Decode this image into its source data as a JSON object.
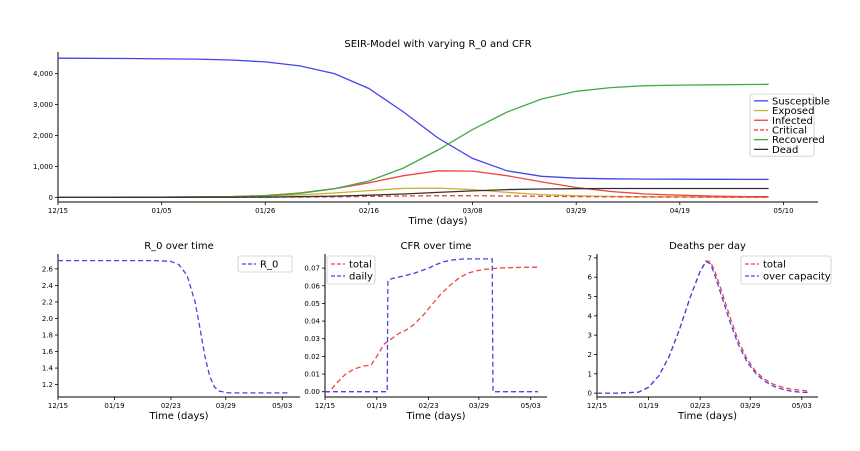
{
  "chart_data": [
    {
      "type": "line",
      "title": "SEIR-Model with varying R_0 and CFR",
      "xlabel": "Time (days)",
      "ylabel": "",
      "xlim": [
        0,
        154
      ],
      "ylim": [
        -150,
        4700
      ],
      "xticks": [
        {
          "x": 0,
          "label": "12/15"
        },
        {
          "x": 21,
          "label": "01/05"
        },
        {
          "x": 42,
          "label": "01/26"
        },
        {
          "x": 63,
          "label": "02/16"
        },
        {
          "x": 84,
          "label": "03/08"
        },
        {
          "x": 105,
          "label": "03/29"
        },
        {
          "x": 126,
          "label": "04/19"
        },
        {
          "x": 147,
          "label": "05/10"
        }
      ],
      "yticks": [
        {
          "y": 0,
          "label": "0"
        },
        {
          "y": 1000,
          "label": "1,000"
        },
        {
          "y": 2000,
          "label": "2,000"
        },
        {
          "y": 3000,
          "label": "3,000"
        },
        {
          "y": 4000,
          "label": "4,000"
        }
      ],
      "legend_position": "right",
      "series": [
        {
          "name": "Susceptible",
          "color": "#4444ee",
          "dash": false,
          "x": [
            0,
            14,
            28,
            35,
            42,
            49,
            56,
            63,
            70,
            77,
            84,
            91,
            98,
            105,
            112,
            119,
            126,
            133,
            140,
            144
          ],
          "y": [
            4500,
            4490,
            4470,
            4440,
            4380,
            4250,
            4000,
            3520,
            2760,
            1920,
            1260,
            860,
            680,
            620,
            600,
            590,
            588,
            585,
            582,
            580
          ]
        },
        {
          "name": "Exposed",
          "color": "#c8b030",
          "dash": false,
          "x": [
            0,
            21,
            35,
            42,
            49,
            56,
            63,
            70,
            77,
            84,
            91,
            98,
            105,
            112,
            119,
            126,
            133,
            140,
            144
          ],
          "y": [
            0,
            5,
            20,
            40,
            80,
            140,
            220,
            290,
            300,
            250,
            160,
            90,
            50,
            30,
            20,
            15,
            10,
            5,
            5
          ]
        },
        {
          "name": "Infected",
          "color": "#ee4444",
          "dash": false,
          "x": [
            0,
            21,
            35,
            42,
            49,
            56,
            63,
            70,
            77,
            84,
            91,
            98,
            105,
            112,
            119,
            126,
            133,
            140,
            144
          ],
          "y": [
            0,
            5,
            25,
            60,
            140,
            280,
            470,
            700,
            860,
            850,
            700,
            500,
            320,
            190,
            110,
            70,
            40,
            25,
            20
          ]
        },
        {
          "name": "Critical",
          "color": "#ee4444",
          "dash": true,
          "x": [
            0,
            42,
            56,
            63,
            70,
            77,
            84,
            91,
            98,
            105,
            112,
            126,
            140,
            144
          ],
          "y": [
            0,
            5,
            15,
            30,
            45,
            55,
            55,
            45,
            35,
            25,
            15,
            8,
            5,
            5
          ]
        },
        {
          "name": "Recovered",
          "color": "#44aa44",
          "dash": false,
          "x": [
            0,
            21,
            35,
            42,
            49,
            56,
            63,
            70,
            77,
            84,
            91,
            98,
            105,
            112,
            119,
            126,
            133,
            140,
            144
          ],
          "y": [
            0,
            5,
            20,
            50,
            130,
            280,
            530,
            950,
            1530,
            2190,
            2760,
            3180,
            3430,
            3550,
            3610,
            3630,
            3640,
            3650,
            3655
          ]
        },
        {
          "name": "Dead",
          "color": "#333333",
          "dash": false,
          "x": [
            0,
            35,
            42,
            49,
            56,
            63,
            70,
            77,
            84,
            91,
            98,
            105,
            112,
            119,
            126,
            133,
            140,
            144
          ],
          "y": [
            0,
            5,
            10,
            20,
            40,
            70,
            110,
            160,
            210,
            250,
            270,
            280,
            285,
            285,
            285,
            285,
            285,
            285
          ]
        }
      ]
    },
    {
      "type": "line",
      "title": "R_0 over time",
      "xlabel": "Time (days)",
      "ylabel": "",
      "xlim": [
        0,
        150
      ],
      "ylim": [
        1.05,
        2.78
      ],
      "xticks": [
        {
          "x": 0,
          "label": "12/15"
        },
        {
          "x": 35,
          "label": "01/19"
        },
        {
          "x": 70,
          "label": "02/23"
        },
        {
          "x": 104,
          "label": "03/29"
        },
        {
          "x": 139,
          "label": "05/03"
        }
      ],
      "yticks": [
        {
          "y": 1.2,
          "label": "1.2"
        },
        {
          "y": 1.4,
          "label": "1.4"
        },
        {
          "y": 1.6,
          "label": "1.6"
        },
        {
          "y": 1.8,
          "label": "1.8"
        },
        {
          "y": 2.0,
          "label": "2.0"
        },
        {
          "y": 2.2,
          "label": "2.2"
        },
        {
          "y": 2.4,
          "label": "2.4"
        },
        {
          "y": 2.6,
          "label": "2.6"
        }
      ],
      "legend_position": "top-right",
      "series": [
        {
          "name": "R_0",
          "color": "#4444ee",
          "dash": true,
          "x": [
            0,
            20,
            40,
            60,
            70,
            75,
            80,
            85,
            88,
            91,
            94,
            97,
            100,
            103,
            106,
            110,
            120,
            140,
            144
          ],
          "y": [
            2.7,
            2.7,
            2.7,
            2.7,
            2.69,
            2.65,
            2.52,
            2.2,
            1.88,
            1.55,
            1.3,
            1.17,
            1.12,
            1.11,
            1.1,
            1.1,
            1.1,
            1.1,
            1.1
          ]
        }
      ]
    },
    {
      "type": "line",
      "title": "CFR over time",
      "xlabel": "Time (days)",
      "ylabel": "",
      "xlim": [
        0,
        150
      ],
      "ylim": [
        -0.003,
        0.078
      ],
      "xticks": [
        {
          "x": 0,
          "label": "12/15"
        },
        {
          "x": 35,
          "label": "01/19"
        },
        {
          "x": 70,
          "label": "02/23"
        },
        {
          "x": 104,
          "label": "03/29"
        },
        {
          "x": 139,
          "label": "05/03"
        }
      ],
      "yticks": [
        {
          "y": 0.0,
          "label": "0.00"
        },
        {
          "y": 0.01,
          "label": "0.01"
        },
        {
          "y": 0.02,
          "label": "0.02"
        },
        {
          "y": 0.03,
          "label": "0.03"
        },
        {
          "y": 0.04,
          "label": "0.04"
        },
        {
          "y": 0.05,
          "label": "0.05"
        },
        {
          "y": 0.06,
          "label": "0.06"
        },
        {
          "y": 0.07,
          "label": "0.07"
        }
      ],
      "legend_position": "top-left",
      "series": [
        {
          "name": "total",
          "color": "#ee4444",
          "dash": true,
          "x": [
            0,
            3,
            8,
            14,
            20,
            26,
            31,
            35,
            40,
            45,
            50,
            55,
            60,
            66,
            72,
            78,
            84,
            90,
            96,
            102,
            108,
            114,
            120,
            126,
            132,
            138,
            144
          ],
          "y": [
            0,
            0,
            0.005,
            0.01,
            0.013,
            0.0145,
            0.015,
            0.02,
            0.027,
            0.03,
            0.033,
            0.035,
            0.038,
            0.043,
            0.049,
            0.055,
            0.06,
            0.064,
            0.067,
            0.0685,
            0.0693,
            0.0698,
            0.0701,
            0.0703,
            0.0704,
            0.0705,
            0.0705
          ]
        },
        {
          "name": "daily",
          "color": "#4444ee",
          "dash": true,
          "x": [
            0,
            42,
            42.5,
            45,
            50,
            55,
            60,
            65,
            70,
            75,
            80,
            85,
            90,
            95,
            100,
            108,
            113,
            113.5,
            144
          ],
          "y": [
            0,
            0,
            0.063,
            0.064,
            0.065,
            0.066,
            0.067,
            0.0685,
            0.07,
            0.072,
            0.0735,
            0.0745,
            0.075,
            0.0752,
            0.0752,
            0.0752,
            0.0752,
            0,
            0
          ]
        }
      ]
    },
    {
      "type": "line",
      "title": "Deaths per day",
      "xlabel": "Time (days)",
      "ylabel": "",
      "xlim": [
        0,
        150
      ],
      "ylim": [
        -0.2,
        7.2
      ],
      "xticks": [
        {
          "x": 0,
          "label": "12/15"
        },
        {
          "x": 35,
          "label": "01/19"
        },
        {
          "x": 70,
          "label": "02/23"
        },
        {
          "x": 104,
          "label": "03/29"
        },
        {
          "x": 139,
          "label": "05/03"
        }
      ],
      "yticks": [
        {
          "y": 0,
          "label": "0"
        },
        {
          "y": 1,
          "label": "1"
        },
        {
          "y": 2,
          "label": "2"
        },
        {
          "y": 3,
          "label": "3"
        },
        {
          "y": 4,
          "label": "4"
        },
        {
          "y": 5,
          "label": "5"
        },
        {
          "y": 6,
          "label": "6"
        },
        {
          "y": 7,
          "label": "7"
        }
      ],
      "legend_position": "top-right",
      "series": [
        {
          "name": "total",
          "color": "#ee4444",
          "dash": true,
          "x": [
            0,
            14,
            28,
            35,
            42,
            49,
            56,
            63,
            70,
            74,
            77,
            80,
            84,
            90,
            96,
            102,
            108,
            114,
            120,
            126,
            132,
            138,
            144
          ],
          "y": [
            0,
            0,
            0.05,
            0.3,
            0.9,
            1.9,
            3.3,
            4.9,
            6.3,
            6.85,
            6.8,
            6.3,
            5.4,
            4.0,
            2.7,
            1.75,
            1.1,
            0.7,
            0.45,
            0.3,
            0.2,
            0.15,
            0.1
          ]
        },
        {
          "name": "over capacity",
          "color": "#4444ee",
          "dash": true,
          "x": [
            0,
            14,
            28,
            35,
            42,
            49,
            56,
            63,
            70,
            74,
            77,
            80,
            84,
            90,
            96,
            102,
            108,
            114,
            120,
            126,
            132,
            138,
            144
          ],
          "y": [
            0,
            0,
            0.05,
            0.3,
            0.9,
            1.9,
            3.3,
            4.9,
            6.3,
            6.8,
            6.7,
            6.1,
            5.15,
            3.75,
            2.5,
            1.6,
            1.0,
            0.6,
            0.35,
            0.2,
            0.1,
            0.05,
            0.03
          ]
        }
      ]
    }
  ]
}
